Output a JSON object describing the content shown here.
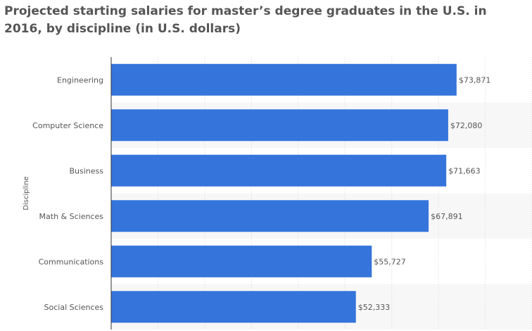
{
  "title": "Projected starting salaries for master’s degree graduates in the U.S. in 2016, by discipline (in U.S. dollars)",
  "colors": {
    "bar": "#3574db",
    "band": "#f7f7f7",
    "grid": "#d9d9d9",
    "text": "#555555",
    "axis": "#333333"
  },
  "chart_data": {
    "type": "bar",
    "orientation": "horizontal",
    "title": "Projected starting salaries for master’s degree graduates in the U.S. in 2016, by discipline (in U.S. dollars)",
    "ylabel": "Discipline",
    "xlabel": "",
    "categories": [
      "Engineering",
      "Computer Science",
      "Business",
      "Math & Sciences",
      "Communications",
      "Social Sciences"
    ],
    "values": [
      73871,
      72080,
      71663,
      67891,
      55727,
      52333
    ],
    "value_labels": [
      "$73,871",
      "$72,080",
      "$71,663",
      "$67,891",
      "$55,727",
      "$52,333"
    ],
    "xlim": [
      0,
      90000
    ],
    "grid": true,
    "legend": "none"
  }
}
